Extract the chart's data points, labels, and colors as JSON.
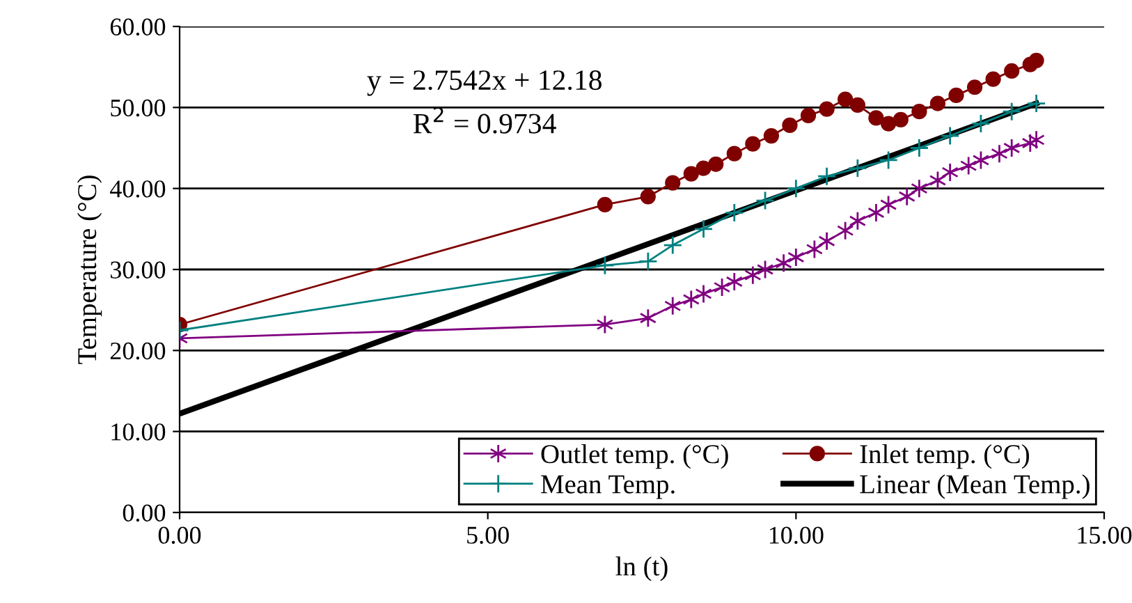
{
  "chart_data": {
    "type": "line",
    "xlabel": "ln (t)",
    "ylabel": "Temperature (°C)",
    "xlim": [
      0,
      15
    ],
    "xticks": [
      {
        "value": 0,
        "label": "0.00"
      },
      {
        "value": 5,
        "label": "5.00"
      },
      {
        "value": 10,
        "label": "10.00"
      },
      {
        "value": 15,
        "label": "15.00"
      }
    ],
    "ylim": [
      0,
      60
    ],
    "yticks": [
      {
        "value": 0,
        "label": "0.00"
      },
      {
        "value": 10,
        "label": "10.00"
      },
      {
        "value": 20,
        "label": "20.00"
      },
      {
        "value": 30,
        "label": "30.00"
      },
      {
        "value": 40,
        "label": "40.00"
      },
      {
        "value": 50,
        "label": "50.00"
      },
      {
        "value": 60,
        "label": "60.00"
      }
    ],
    "grid": "y",
    "legend": "bottom right",
    "annotations": [
      "y = 2.7542x + 12.18",
      "R$^{2}$ = 0.9734"
    ],
    "series": [
      {
        "name": "Outlet temp. (°C)",
        "color": "#800080",
        "marker": "cross",
        "x": [
          0,
          6.9,
          7.6,
          8.0,
          8.3,
          8.5,
          8.8,
          9.0,
          9.3,
          9.5,
          9.8,
          10.0,
          10.3,
          10.5,
          10.8,
          11.0,
          11.3,
          11.5,
          11.8,
          12.0,
          12.3,
          12.5,
          12.8,
          13.0,
          13.3,
          13.5,
          13.8,
          13.9
        ],
        "values": [
          21.5,
          23.2,
          24,
          25.5,
          26.3,
          27,
          27.8,
          28.5,
          29.3,
          30,
          30.8,
          31.5,
          32.5,
          33.5,
          34.8,
          36,
          37,
          38,
          39,
          40,
          41,
          42,
          42.8,
          43.5,
          44.3,
          45,
          45.6,
          46
        ]
      },
      {
        "name": "Inlet temp. (°C)",
        "color": "#800000",
        "marker": "circle",
        "x": [
          0,
          6.9,
          7.6,
          8.0,
          8.3,
          8.5,
          8.7,
          9.0,
          9.3,
          9.6,
          9.9,
          10.2,
          10.5,
          10.8,
          11.0,
          11.3,
          11.5,
          11.7,
          12.0,
          12.3,
          12.6,
          12.9,
          13.2,
          13.5,
          13.8,
          13.9
        ],
        "values": [
          23.2,
          38,
          39,
          40.7,
          41.8,
          42.5,
          43,
          44.3,
          45.5,
          46.5,
          47.8,
          49,
          49.8,
          51,
          50.3,
          48.7,
          48,
          48.5,
          49.5,
          50.5,
          51.5,
          52.5,
          53.5,
          54.5,
          55.3,
          55.8
        ]
      },
      {
        "name": "Mean Temp.",
        "color": "#008080",
        "marker": "cross",
        "x": [
          0,
          6.9,
          7.6,
          8.0,
          8.5,
          9.0,
          9.5,
          10.0,
          10.5,
          11.0,
          11.5,
          12.0,
          12.5,
          13.0,
          13.5,
          13.9
        ],
        "values": [
          22.5,
          30.5,
          31,
          33,
          35,
          37,
          38.5,
          40,
          41.5,
          42.5,
          43.5,
          45,
          46.5,
          48,
          49.5,
          50.5
        ]
      },
      {
        "name": "Linear (Mean Temp.)",
        "color": "#000000",
        "marker": "none",
        "x": [
          0,
          13.9
        ],
        "values": [
          12.2,
          50.5
        ]
      }
    ]
  }
}
